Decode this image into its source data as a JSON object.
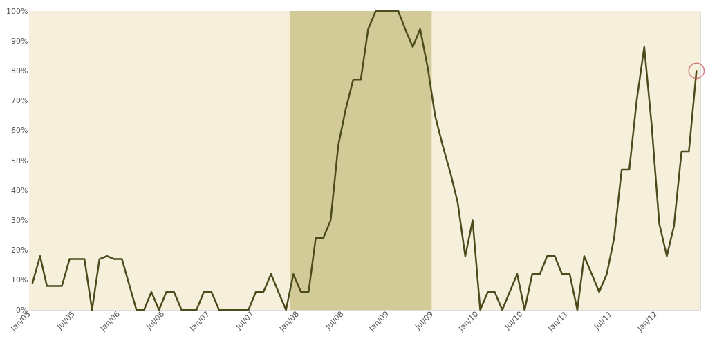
{
  "chart_data": {
    "type": "line",
    "x": [
      "2005-01-15",
      "2005-02-15",
      "2005-03-15",
      "2005-04-15",
      "2005-05-15",
      "2005-06-15",
      "2005-07-15",
      "2005-08-15",
      "2005-09-15",
      "2005-10-15",
      "2005-11-15",
      "2005-12-15",
      "2006-01-15",
      "2006-02-15",
      "2006-03-15",
      "2006-04-15",
      "2006-05-15",
      "2006-06-15",
      "2006-07-15",
      "2006-08-15",
      "2006-09-15",
      "2006-10-15",
      "2006-11-15",
      "2006-12-15",
      "2007-01-15",
      "2007-02-15",
      "2007-03-15",
      "2007-04-15",
      "2007-05-15",
      "2007-06-15",
      "2007-07-15",
      "2007-08-15",
      "2007-09-15",
      "2007-10-15",
      "2007-11-15",
      "2007-12-15",
      "2008-01-15",
      "2008-02-15",
      "2008-03-15",
      "2008-04-15",
      "2008-05-15",
      "2008-06-15",
      "2008-07-15",
      "2008-08-15",
      "2008-09-15",
      "2008-10-15",
      "2008-11-15",
      "2008-12-15",
      "2009-01-15",
      "2009-02-15",
      "2009-03-15",
      "2009-04-15",
      "2009-05-15",
      "2009-06-15",
      "2009-07-15",
      "2009-08-15",
      "2009-09-15",
      "2009-10-15",
      "2009-11-15",
      "2009-12-15",
      "2010-01-15",
      "2010-02-15",
      "2010-03-15",
      "2010-04-15",
      "2010-05-15",
      "2010-06-15",
      "2010-07-15",
      "2010-08-15",
      "2010-09-15",
      "2010-10-15",
      "2010-11-15",
      "2010-12-15",
      "2011-01-15",
      "2011-02-15",
      "2011-03-15",
      "2011-04-15",
      "2011-05-15",
      "2011-06-15",
      "2011-07-15",
      "2011-08-15",
      "2011-09-15",
      "2011-10-15",
      "2011-11-15",
      "2011-12-15",
      "2012-01-15",
      "2012-02-15",
      "2012-03-15",
      "2012-04-15",
      "2012-05-15",
      "2012-06-15"
    ],
    "series": [
      {
        "color": "#4b4b1c",
        "values": [
          9,
          18,
          8,
          8,
          8,
          17,
          17,
          17,
          0,
          17,
          18,
          17,
          17,
          8,
          0,
          0,
          6,
          0,
          6,
          6,
          0,
          0,
          0,
          6,
          6,
          0,
          0,
          0,
          0,
          0,
          6,
          6,
          12,
          6,
          0,
          12,
          6,
          6,
          24,
          24,
          30,
          55,
          67,
          77,
          77,
          94,
          100,
          100,
          100,
          100,
          94,
          88,
          94,
          81,
          65,
          55,
          46,
          36,
          18,
          30,
          0,
          6,
          6,
          0,
          6,
          12,
          0,
          12,
          12,
          18,
          18,
          12,
          12,
          0,
          18,
          12,
          6,
          12,
          24,
          47,
          47,
          70,
          88,
          62,
          29,
          18,
          28,
          53,
          53,
          80
        ]
      },
      {
        "type": "scatter",
        "marker": "circle",
        "color": "#c0504d",
        "x": [
          "2012-06-15"
        ],
        "values": [
          80
        ]
      }
    ],
    "xlim": [
      "2005-01-01",
      "2012-07-01"
    ],
    "xticks": [
      {
        "value": "2005-01-01",
        "label": "Jan/05"
      },
      {
        "value": "2005-07-01",
        "label": "Jul/05"
      },
      {
        "value": "2006-01-01",
        "label": "Jan/06"
      },
      {
        "value": "2006-07-01",
        "label": "Jul/06"
      },
      {
        "value": "2007-01-01",
        "label": "Jan/07"
      },
      {
        "value": "2007-07-01",
        "label": "Jul/07"
      },
      {
        "value": "2008-01-01",
        "label": "Jan/08"
      },
      {
        "value": "2008-07-01",
        "label": "Jul/08"
      },
      {
        "value": "2009-01-01",
        "label": "Jan/09"
      },
      {
        "value": "2009-07-01",
        "label": "Jul/09"
      },
      {
        "value": "2010-01-01",
        "label": "Jan/10"
      },
      {
        "value": "2010-07-01",
        "label": "Jul/10"
      },
      {
        "value": "2011-01-01",
        "label": "Jan/11"
      },
      {
        "value": "2011-07-01",
        "label": "Jul/11"
      },
      {
        "value": "2012-01-01",
        "label": "Jan/12"
      }
    ],
    "ylim": [
      0,
      100
    ],
    "yticks": [
      {
        "value": 0,
        "label": "0%"
      },
      {
        "value": 10,
        "label": "10%"
      },
      {
        "value": 20,
        "label": "20%"
      },
      {
        "value": 30,
        "label": "30%"
      },
      {
        "value": 40,
        "label": "40%"
      },
      {
        "value": 50,
        "label": "50%"
      },
      {
        "value": 60,
        "label": "60%"
      },
      {
        "value": 70,
        "label": "70%"
      },
      {
        "value": 80,
        "label": "80%"
      },
      {
        "value": 90,
        "label": "90%"
      },
      {
        "value": 100,
        "label": "100%"
      }
    ],
    "bands": [
      {
        "axis": "x",
        "from": "2007-12-01",
        "to": "2009-07-01",
        "color": "#d3cb97"
      }
    ],
    "grid": false
  }
}
